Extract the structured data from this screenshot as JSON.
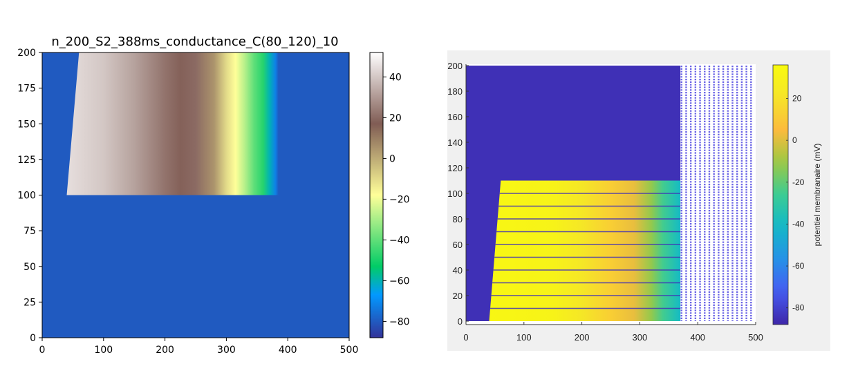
{
  "chart_data": [
    {
      "type": "heatmap",
      "title": "n_200_S2_388ms_conductance_C(80_120)_10",
      "xlim": [
        0,
        500
      ],
      "ylim": [
        0,
        200
      ],
      "x_ticks": [
        0,
        100,
        200,
        300,
        400,
        500
      ],
      "y_ticks": [
        0,
        25,
        50,
        75,
        100,
        125,
        150,
        175,
        200
      ],
      "background_value": -80,
      "active_region": {
        "x_left_at_bottom": 40,
        "x_left_at_top": 60,
        "x_right": 385,
        "y_bottom": 100,
        "y_top": 200
      },
      "profile_x": [
        40,
        100,
        150,
        200,
        225,
        250,
        280,
        300,
        315,
        330,
        345,
        360,
        370,
        380,
        390
      ],
      "profile_values": [
        45,
        40,
        32,
        22,
        18,
        20,
        5,
        -10,
        -18,
        -28,
        -40,
        -48,
        -60,
        -72,
        -80
      ],
      "colorbar": {
        "colormap": "terrain",
        "range": [
          -88,
          52
        ],
        "ticks": [
          40,
          20,
          0,
          -20,
          -40,
          -60,
          -80
        ],
        "tick_labels": [
          "40",
          "20",
          "0",
          "−20",
          "−40",
          "−60",
          "−80"
        ]
      }
    },
    {
      "type": "scatter",
      "title": "",
      "xlim": [
        0,
        500
      ],
      "ylim": [
        0,
        200
      ],
      "x_ticks": [
        0,
        100,
        200,
        300,
        400,
        500
      ],
      "y_ticks": [
        0,
        20,
        40,
        60,
        80,
        100,
        120,
        140,
        160,
        180,
        200
      ],
      "background_value": -85,
      "background_region": {
        "x_min": 0,
        "x_max": 370,
        "y_min": 0,
        "y_max": 200
      },
      "active_region": {
        "x_left_at_bottom": 40,
        "x_left_at_top": 60,
        "x_right": 370,
        "y_bottom": 0,
        "y_top": 110
      },
      "row_lines_y": [
        10,
        20,
        30,
        40,
        50,
        60,
        70,
        80,
        90,
        100
      ],
      "column_x": [
        372,
        380,
        388,
        396,
        404,
        412,
        420,
        428,
        436,
        444,
        452,
        460,
        468,
        476,
        484,
        492
      ],
      "profile_x": [
        40,
        150,
        200,
        250,
        290,
        320,
        340,
        360,
        370
      ],
      "profile_values": [
        33,
        30,
        22,
        12,
        2,
        -12,
        -25,
        -35,
        -40
      ],
      "colorbar": {
        "colormap": "parula",
        "label": "potentiel membranaire (mV)",
        "range": [
          -88,
          36
        ],
        "ticks": [
          20,
          0,
          -20,
          -40,
          -60,
          -80
        ],
        "tick_labels": [
          "20",
          "0",
          "-20",
          "-40",
          "-60",
          "-80"
        ]
      }
    }
  ]
}
